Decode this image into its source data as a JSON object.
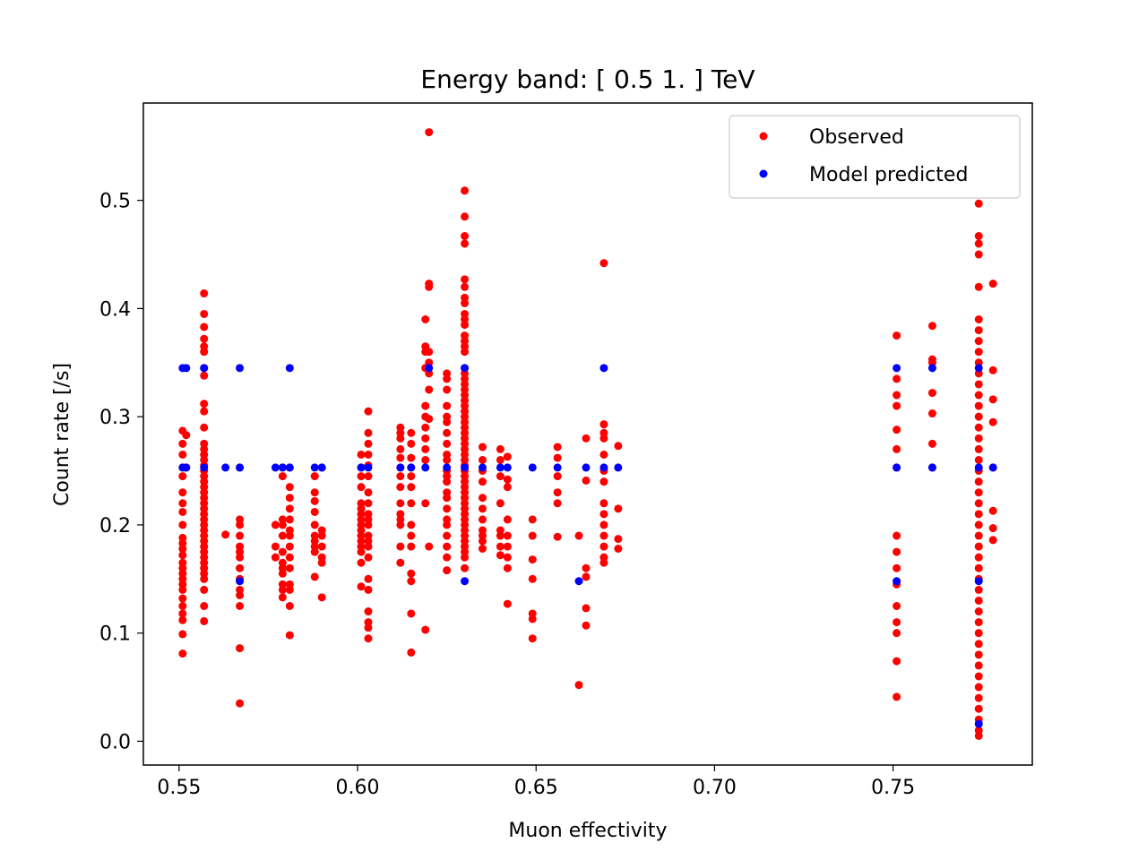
{
  "chart_data": {
    "type": "scatter",
    "title": "Energy band: [ 0.5  1. ] TeV",
    "xlabel": "Muon effectivity",
    "ylabel": "Count rate [/s]",
    "xlim": [
      0.54,
      0.789
    ],
    "ylim": [
      -0.022,
      0.59
    ],
    "xticks": [
      0.55,
      0.6,
      0.65,
      0.7,
      0.75
    ],
    "xtick_labels": [
      "0.55",
      "0.60",
      "0.65",
      "0.70",
      "0.75"
    ],
    "yticks": [
      0.0,
      0.1,
      0.2,
      0.3,
      0.4,
      0.5
    ],
    "ytick_labels": [
      "0.0",
      "0.1",
      "0.2",
      "0.3",
      "0.4",
      "0.5"
    ],
    "grid": false,
    "legend_position": "top-right",
    "series": [
      {
        "name": "Observed",
        "color": "#ff0000",
        "marker": "circle",
        "groups": [
          {
            "x": 0.551,
            "y": [
              0.081,
              0.099,
              0.112,
              0.118,
              0.125,
              0.132,
              0.14,
              0.145,
              0.15,
              0.155,
              0.16,
              0.165,
              0.172,
              0.178,
              0.183,
              0.188,
              0.2,
              0.212,
              0.22,
              0.23,
              0.245,
              0.253,
              0.265,
              0.275,
              0.287
            ]
          },
          {
            "x": 0.552,
            "y": [
              0.283,
              0.253
            ]
          },
          {
            "x": 0.557,
            "y": [
              0.111,
              0.125,
              0.14,
              0.15,
              0.155,
              0.16,
              0.165,
              0.17,
              0.175,
              0.18,
              0.185,
              0.19,
              0.195,
              0.2,
              0.205,
              0.21,
              0.215,
              0.22,
              0.225,
              0.23,
              0.235,
              0.24,
              0.245,
              0.25,
              0.255,
              0.26,
              0.265,
              0.27,
              0.275,
              0.29,
              0.305,
              0.312,
              0.338,
              0.345,
              0.36,
              0.365,
              0.372,
              0.383,
              0.395,
              0.414
            ]
          },
          {
            "x": 0.563,
            "y": [
              0.191
            ]
          },
          {
            "x": 0.567,
            "y": [
              0.035,
              0.086,
              0.125,
              0.135,
              0.14,
              0.15,
              0.16,
              0.17,
              0.175,
              0.18,
              0.19,
              0.2,
              0.205,
              0.253
            ]
          },
          {
            "x": 0.577,
            "y": [
              0.17,
              0.18,
              0.2
            ]
          },
          {
            "x": 0.579,
            "y": [
              0.133,
              0.14,
              0.145,
              0.155,
              0.16,
              0.165,
              0.175,
              0.19,
              0.2,
              0.205,
              0.245,
              0.253
            ]
          },
          {
            "x": 0.581,
            "y": [
              0.098,
              0.125,
              0.14,
              0.145,
              0.16,
              0.17,
              0.18,
              0.19,
              0.195,
              0.205,
              0.215,
              0.225,
              0.235,
              0.253
            ]
          },
          {
            "x": 0.588,
            "y": [
              0.152,
              0.175,
              0.18,
              0.185,
              0.19,
              0.2,
              0.212,
              0.222,
              0.23,
              0.245
            ]
          },
          {
            "x": 0.59,
            "y": [
              0.133,
              0.165,
              0.17,
              0.18,
              0.19,
              0.195,
              0.253
            ]
          },
          {
            "x": 0.601,
            "y": [
              0.143,
              0.165,
              0.175,
              0.18,
              0.185,
              0.19,
              0.195,
              0.2,
              0.205,
              0.21,
              0.215,
              0.22,
              0.235,
              0.245,
              0.253,
              0.265
            ]
          },
          {
            "x": 0.603,
            "y": [
              0.095,
              0.105,
              0.11,
              0.12,
              0.14,
              0.15,
              0.17,
              0.18,
              0.185,
              0.19,
              0.2,
              0.205,
              0.21,
              0.22,
              0.23,
              0.245,
              0.255,
              0.265,
              0.275,
              0.285,
              0.305
            ]
          },
          {
            "x": 0.612,
            "y": [
              0.165,
              0.18,
              0.2,
              0.205,
              0.21,
              0.22,
              0.235,
              0.245,
              0.253,
              0.262,
              0.27,
              0.28,
              0.285,
              0.29
            ]
          },
          {
            "x": 0.615,
            "y": [
              0.082,
              0.118,
              0.148,
              0.155,
              0.18,
              0.19,
              0.2,
              0.22,
              0.235,
              0.245,
              0.253,
              0.262,
              0.275,
              0.285
            ]
          },
          {
            "x": 0.619,
            "y": [
              0.103,
              0.22,
              0.26,
              0.27,
              0.28,
              0.29,
              0.3,
              0.31,
              0.345,
              0.36,
              0.365,
              0.39
            ]
          },
          {
            "x": 0.62,
            "y": [
              0.18,
              0.298,
              0.325,
              0.34,
              0.35,
              0.36,
              0.42,
              0.423,
              0.563
            ]
          },
          {
            "x": 0.625,
            "y": [
              0.158,
              0.17,
              0.18,
              0.19,
              0.2,
              0.205,
              0.215,
              0.225,
              0.23,
              0.24,
              0.245,
              0.25,
              0.26,
              0.265,
              0.275,
              0.285,
              0.295,
              0.3,
              0.31,
              0.325,
              0.335,
              0.34
            ]
          },
          {
            "x": 0.63,
            "y": [
              0.16,
              0.17,
              0.175,
              0.18,
              0.185,
              0.19,
              0.195,
              0.2,
              0.205,
              0.21,
              0.215,
              0.22,
              0.225,
              0.23,
              0.235,
              0.24,
              0.245,
              0.25,
              0.255,
              0.26,
              0.265,
              0.27,
              0.275,
              0.28,
              0.285,
              0.29,
              0.295,
              0.3,
              0.305,
              0.31,
              0.315,
              0.32,
              0.325,
              0.33,
              0.335,
              0.34,
              0.345,
              0.36,
              0.365,
              0.37,
              0.375,
              0.385,
              0.39,
              0.395,
              0.405,
              0.41,
              0.42,
              0.427,
              0.46,
              0.467,
              0.485,
              0.509
            ]
          },
          {
            "x": 0.635,
            "y": [
              0.178,
              0.185,
              0.19,
              0.195,
              0.205,
              0.215,
              0.225,
              0.24,
              0.25,
              0.26,
              0.272
            ]
          },
          {
            "x": 0.64,
            "y": [
              0.172,
              0.18,
              0.19,
              0.195,
              0.22,
              0.245,
              0.26,
              0.27
            ]
          },
          {
            "x": 0.642,
            "y": [
              0.127,
              0.16,
              0.17,
              0.18,
              0.19,
              0.205,
              0.235,
              0.242,
              0.263
            ]
          },
          {
            "x": 0.649,
            "y": [
              0.095,
              0.113,
              0.118,
              0.15,
              0.168,
              0.19,
              0.205
            ]
          },
          {
            "x": 0.656,
            "y": [
              0.189,
              0.22,
              0.23,
              0.245,
              0.262,
              0.272
            ]
          },
          {
            "x": 0.662,
            "y": [
              0.052,
              0.19
            ]
          },
          {
            "x": 0.664,
            "y": [
              0.107,
              0.123,
              0.152,
              0.16,
              0.241,
              0.28
            ]
          },
          {
            "x": 0.669,
            "y": [
              0.165,
              0.17,
              0.18,
              0.19,
              0.2,
              0.21,
              0.22,
              0.24,
              0.25,
              0.265,
              0.28,
              0.285,
              0.293,
              0.442
            ]
          },
          {
            "x": 0.673,
            "y": [
              0.178,
              0.187,
              0.215,
              0.273
            ]
          },
          {
            "x": 0.751,
            "y": [
              0.041,
              0.074,
              0.1,
              0.11,
              0.125,
              0.145,
              0.16,
              0.175,
              0.19,
              0.253,
              0.27,
              0.288,
              0.31,
              0.32,
              0.335,
              0.375
            ]
          },
          {
            "x": 0.761,
            "y": [
              0.253,
              0.275,
              0.303,
              0.322,
              0.35,
              0.353,
              0.384
            ]
          },
          {
            "x": 0.774,
            "y": [
              0.005,
              0.01,
              0.02,
              0.03,
              0.04,
              0.05,
              0.06,
              0.07,
              0.08,
              0.09,
              0.1,
              0.11,
              0.12,
              0.13,
              0.14,
              0.15,
              0.16,
              0.17,
              0.18,
              0.19,
              0.2,
              0.21,
              0.22,
              0.23,
              0.24,
              0.25,
              0.26,
              0.27,
              0.28,
              0.29,
              0.3,
              0.31,
              0.32,
              0.33,
              0.34,
              0.35,
              0.36,
              0.37,
              0.38,
              0.39,
              0.42,
              0.45,
              0.46,
              0.467,
              0.497
            ]
          },
          {
            "x": 0.778,
            "y": [
              0.186,
              0.197,
              0.213,
              0.253,
              0.295,
              0.316,
              0.343,
              0.423
            ]
          }
        ]
      },
      {
        "name": "Model predicted",
        "color": "#0000ff",
        "marker": "circle",
        "points": [
          {
            "x": 0.551,
            "y": 0.345
          },
          {
            "x": 0.552,
            "y": 0.345
          },
          {
            "x": 0.551,
            "y": 0.253
          },
          {
            "x": 0.552,
            "y": 0.253
          },
          {
            "x": 0.557,
            "y": 0.345
          },
          {
            "x": 0.557,
            "y": 0.253
          },
          {
            "x": 0.563,
            "y": 0.253
          },
          {
            "x": 0.567,
            "y": 0.345
          },
          {
            "x": 0.567,
            "y": 0.253
          },
          {
            "x": 0.567,
            "y": 0.148
          },
          {
            "x": 0.577,
            "y": 0.253
          },
          {
            "x": 0.579,
            "y": 0.253
          },
          {
            "x": 0.581,
            "y": 0.345
          },
          {
            "x": 0.581,
            "y": 0.253
          },
          {
            "x": 0.588,
            "y": 0.253
          },
          {
            "x": 0.59,
            "y": 0.253
          },
          {
            "x": 0.601,
            "y": 0.253
          },
          {
            "x": 0.603,
            "y": 0.253
          },
          {
            "x": 0.612,
            "y": 0.253
          },
          {
            "x": 0.615,
            "y": 0.253
          },
          {
            "x": 0.619,
            "y": 0.253
          },
          {
            "x": 0.62,
            "y": 0.345
          },
          {
            "x": 0.625,
            "y": 0.253
          },
          {
            "x": 0.63,
            "y": 0.345
          },
          {
            "x": 0.63,
            "y": 0.253
          },
          {
            "x": 0.63,
            "y": 0.148
          },
          {
            "x": 0.635,
            "y": 0.253
          },
          {
            "x": 0.64,
            "y": 0.253
          },
          {
            "x": 0.642,
            "y": 0.253
          },
          {
            "x": 0.649,
            "y": 0.253
          },
          {
            "x": 0.656,
            "y": 0.253
          },
          {
            "x": 0.662,
            "y": 0.148
          },
          {
            "x": 0.664,
            "y": 0.253
          },
          {
            "x": 0.669,
            "y": 0.345
          },
          {
            "x": 0.669,
            "y": 0.253
          },
          {
            "x": 0.673,
            "y": 0.253
          },
          {
            "x": 0.751,
            "y": 0.345
          },
          {
            "x": 0.751,
            "y": 0.253
          },
          {
            "x": 0.751,
            "y": 0.148
          },
          {
            "x": 0.761,
            "y": 0.345
          },
          {
            "x": 0.761,
            "y": 0.253
          },
          {
            "x": 0.774,
            "y": 0.345
          },
          {
            "x": 0.774,
            "y": 0.253
          },
          {
            "x": 0.774,
            "y": 0.148
          },
          {
            "x": 0.774,
            "y": 0.016
          },
          {
            "x": 0.778,
            "y": 0.253
          }
        ]
      }
    ]
  }
}
